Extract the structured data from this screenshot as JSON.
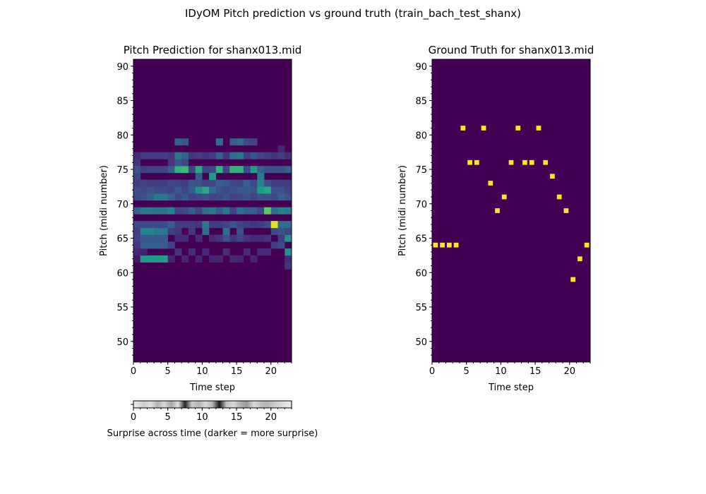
{
  "figure": {
    "suptitle": "IDyOM Pitch prediction vs ground truth (train_bach_test_shanx)"
  },
  "colors": {
    "viridis_low": "#440154",
    "viridis_high": "#fde725",
    "background": "#ffffff"
  },
  "chart_data": [
    {
      "type": "heatmap",
      "title": "Pitch Prediction for shanx013.mid",
      "xlabel": "Time step",
      "ylabel": "Pitch (midi number)",
      "xlim": [
        0,
        23
      ],
      "ylim": [
        47,
        91
      ],
      "x_ticks": [
        0,
        5,
        10,
        15,
        20
      ],
      "y_ticks": [
        50,
        55,
        60,
        65,
        70,
        75,
        80,
        85,
        90
      ],
      "colormap": "viridis",
      "cells": [
        [
          0,
          62,
          0.06
        ],
        [
          0,
          63,
          0.1
        ],
        [
          0,
          64,
          0.15
        ],
        [
          0,
          65,
          0.2
        ],
        [
          0,
          66,
          0.18
        ],
        [
          0,
          67,
          0.22
        ],
        [
          0,
          69,
          0.3
        ],
        [
          0,
          71,
          0.22
        ],
        [
          0,
          72,
          0.24
        ],
        [
          0,
          73,
          0.18
        ],
        [
          0,
          74,
          0.2
        ],
        [
          0,
          75,
          0.25
        ],
        [
          0,
          76,
          0.15
        ],
        [
          0,
          77,
          0.12
        ],
        [
          1,
          62,
          0.55
        ],
        [
          1,
          63,
          0.08
        ],
        [
          1,
          64,
          0.3
        ],
        [
          1,
          65,
          0.28
        ],
        [
          1,
          66,
          0.45
        ],
        [
          1,
          67,
          0.22
        ],
        [
          1,
          69,
          0.4
        ],
        [
          1,
          71,
          0.25
        ],
        [
          1,
          72,
          0.22
        ],
        [
          1,
          73,
          0.2
        ],
        [
          1,
          75,
          0.18
        ],
        [
          1,
          77,
          0.18
        ],
        [
          2,
          62,
          0.55
        ],
        [
          2,
          64,
          0.3
        ],
        [
          2,
          65,
          0.28
        ],
        [
          2,
          66,
          0.45
        ],
        [
          2,
          67,
          0.22
        ],
        [
          2,
          69,
          0.4
        ],
        [
          2,
          71,
          0.3
        ],
        [
          2,
          72,
          0.25
        ],
        [
          2,
          73,
          0.18
        ],
        [
          2,
          75,
          0.2
        ],
        [
          2,
          77,
          0.18
        ],
        [
          3,
          62,
          0.55
        ],
        [
          3,
          64,
          0.3
        ],
        [
          3,
          65,
          0.28
        ],
        [
          3,
          66,
          0.4
        ],
        [
          3,
          67,
          0.22
        ],
        [
          3,
          69,
          0.38
        ],
        [
          3,
          71,
          0.4
        ],
        [
          3,
          72,
          0.22
        ],
        [
          3,
          73,
          0.18
        ],
        [
          3,
          75,
          0.2
        ],
        [
          3,
          77,
          0.18
        ],
        [
          4,
          62,
          0.55
        ],
        [
          4,
          64,
          0.3
        ],
        [
          4,
          65,
          0.28
        ],
        [
          4,
          66,
          0.4
        ],
        [
          4,
          67,
          0.22
        ],
        [
          4,
          69,
          0.38
        ],
        [
          4,
          71,
          0.4
        ],
        [
          4,
          72,
          0.22
        ],
        [
          4,
          73,
          0.18
        ],
        [
          4,
          75,
          0.2
        ],
        [
          4,
          77,
          0.18
        ],
        [
          5,
          62,
          0.1
        ],
        [
          5,
          64,
          0.2
        ],
        [
          5,
          66,
          0.18
        ],
        [
          5,
          67,
          0.3
        ],
        [
          5,
          69,
          0.45
        ],
        [
          5,
          71,
          0.32
        ],
        [
          5,
          72,
          0.2
        ],
        [
          5,
          73,
          0.22
        ],
        [
          5,
          75,
          0.3
        ],
        [
          5,
          76,
          0.15
        ],
        [
          5,
          77,
          0.15
        ],
        [
          6,
          63,
          0.15
        ],
        [
          6,
          65,
          0.12
        ],
        [
          6,
          66,
          0.15
        ],
        [
          6,
          67,
          0.18
        ],
        [
          6,
          69,
          0.2
        ],
        [
          6,
          71,
          0.22
        ],
        [
          6,
          72,
          0.28
        ],
        [
          6,
          73,
          0.2
        ],
        [
          6,
          75,
          0.65
        ],
        [
          6,
          76,
          0.25
        ],
        [
          6,
          77,
          0.4
        ],
        [
          6,
          79,
          0.3
        ],
        [
          7,
          62,
          0.1
        ],
        [
          7,
          65,
          0.12
        ],
        [
          7,
          67,
          0.18
        ],
        [
          7,
          69,
          0.22
        ],
        [
          7,
          71,
          0.28
        ],
        [
          7,
          72,
          0.22
        ],
        [
          7,
          73,
          0.18
        ],
        [
          7,
          75,
          0.68
        ],
        [
          7,
          76,
          0.2
        ],
        [
          7,
          77,
          0.3
        ],
        [
          7,
          79,
          0.25
        ],
        [
          8,
          63,
          0.12
        ],
        [
          8,
          66,
          0.15
        ],
        [
          8,
          67,
          0.18
        ],
        [
          8,
          69,
          0.3
        ],
        [
          8,
          71,
          0.2
        ],
        [
          8,
          72,
          0.3
        ],
        [
          8,
          73,
          0.28
        ],
        [
          8,
          75,
          0.2
        ],
        [
          8,
          77,
          0.15
        ],
        [
          9,
          62,
          0.1
        ],
        [
          9,
          65,
          0.12
        ],
        [
          9,
          67,
          0.15
        ],
        [
          9,
          69,
          0.2
        ],
        [
          9,
          71,
          0.22
        ],
        [
          9,
          72,
          0.5
        ],
        [
          9,
          73,
          0.25
        ],
        [
          9,
          74,
          0.28
        ],
        [
          9,
          75,
          0.6
        ],
        [
          9,
          77,
          0.18
        ],
        [
          10,
          63,
          0.12
        ],
        [
          10,
          66,
          0.35
        ],
        [
          10,
          67,
          0.4
        ],
        [
          10,
          69,
          0.35
        ],
        [
          10,
          71,
          0.25
        ],
        [
          10,
          72,
          0.6
        ],
        [
          10,
          73,
          0.2
        ],
        [
          10,
          75,
          0.2
        ],
        [
          10,
          77,
          0.15
        ],
        [
          11,
          62,
          0.1
        ],
        [
          11,
          65,
          0.12
        ],
        [
          11,
          67,
          0.18
        ],
        [
          11,
          69,
          0.4
        ],
        [
          11,
          71,
          0.2
        ],
        [
          11,
          72,
          0.35
        ],
        [
          11,
          73,
          0.22
        ],
        [
          11,
          74,
          0.55
        ],
        [
          11,
          75,
          0.22
        ],
        [
          11,
          77,
          0.18
        ],
        [
          12,
          62,
          0.1
        ],
        [
          12,
          65,
          0.15
        ],
        [
          12,
          67,
          0.18
        ],
        [
          12,
          69,
          0.28
        ],
        [
          12,
          71,
          0.22
        ],
        [
          12,
          72,
          0.25
        ],
        [
          12,
          73,
          0.3
        ],
        [
          12,
          75,
          0.65
        ],
        [
          12,
          77,
          0.3
        ],
        [
          12,
          79,
          0.35
        ],
        [
          13,
          63,
          0.12
        ],
        [
          13,
          65,
          0.25
        ],
        [
          13,
          66,
          0.35
        ],
        [
          13,
          67,
          0.2
        ],
        [
          13,
          69,
          0.4
        ],
        [
          13,
          71,
          0.25
        ],
        [
          13,
          72,
          0.22
        ],
        [
          13,
          73,
          0.28
        ],
        [
          13,
          75,
          0.2
        ],
        [
          13,
          77,
          0.15
        ],
        [
          14,
          62,
          0.12
        ],
        [
          14,
          65,
          0.15
        ],
        [
          14,
          67,
          0.25
        ],
        [
          14,
          69,
          0.2
        ],
        [
          14,
          71,
          0.2
        ],
        [
          14,
          72,
          0.25
        ],
        [
          14,
          73,
          0.22
        ],
        [
          14,
          75,
          0.65
        ],
        [
          14,
          77,
          0.35
        ],
        [
          14,
          79,
          0.3
        ],
        [
          15,
          62,
          0.1
        ],
        [
          15,
          65,
          0.2
        ],
        [
          15,
          66,
          0.25
        ],
        [
          15,
          67,
          0.2
        ],
        [
          15,
          69,
          0.35
        ],
        [
          15,
          71,
          0.22
        ],
        [
          15,
          72,
          0.28
        ],
        [
          15,
          73,
          0.2
        ],
        [
          15,
          75,
          0.65
        ],
        [
          15,
          77,
          0.4
        ],
        [
          15,
          79,
          0.35
        ],
        [
          16,
          63,
          0.12
        ],
        [
          16,
          65,
          0.15
        ],
        [
          16,
          67,
          0.18
        ],
        [
          16,
          69,
          0.3
        ],
        [
          16,
          71,
          0.25
        ],
        [
          16,
          72,
          0.28
        ],
        [
          16,
          73,
          0.3
        ],
        [
          16,
          75,
          0.22
        ],
        [
          16,
          77,
          0.18
        ],
        [
          16,
          79,
          0.22
        ],
        [
          17,
          62,
          0.1
        ],
        [
          17,
          65,
          0.12
        ],
        [
          17,
          67,
          0.15
        ],
        [
          17,
          69,
          0.3
        ],
        [
          17,
          71,
          0.2
        ],
        [
          17,
          72,
          0.25
        ],
        [
          17,
          73,
          0.22
        ],
        [
          17,
          75,
          0.55
        ],
        [
          17,
          77,
          0.25
        ],
        [
          17,
          79,
          0.2
        ],
        [
          18,
          63,
          0.12
        ],
        [
          18,
          65,
          0.12
        ],
        [
          18,
          67,
          0.18
        ],
        [
          18,
          69,
          0.22
        ],
        [
          18,
          71,
          0.25
        ],
        [
          18,
          72,
          0.55
        ],
        [
          18,
          73,
          0.45
        ],
        [
          18,
          74,
          0.4
        ],
        [
          18,
          75,
          0.3
        ],
        [
          18,
          77,
          0.2
        ],
        [
          19,
          63,
          0.12
        ],
        [
          19,
          65,
          0.15
        ],
        [
          19,
          67,
          0.22
        ],
        [
          19,
          69,
          0.75
        ],
        [
          19,
          71,
          0.25
        ],
        [
          19,
          72,
          0.6
        ],
        [
          19,
          73,
          0.25
        ],
        [
          19,
          75,
          0.25
        ],
        [
          19,
          77,
          0.18
        ],
        [
          20,
          64,
          0.18
        ],
        [
          20,
          66,
          0.22
        ],
        [
          20,
          67,
          0.95
        ],
        [
          20,
          69,
          0.35
        ],
        [
          20,
          71,
          0.22
        ],
        [
          20,
          72,
          0.25
        ],
        [
          20,
          73,
          0.18
        ],
        [
          20,
          75,
          0.25
        ],
        [
          20,
          77,
          0.15
        ],
        [
          21,
          64,
          0.22
        ],
        [
          21,
          65,
          0.18
        ],
        [
          21,
          66,
          0.25
        ],
        [
          21,
          67,
          0.35
        ],
        [
          21,
          69,
          0.45
        ],
        [
          21,
          71,
          0.3
        ],
        [
          21,
          72,
          0.25
        ],
        [
          21,
          73,
          0.18
        ],
        [
          21,
          75,
          0.25
        ],
        [
          21,
          77,
          0.18
        ],
        [
          21,
          78,
          0.1
        ],
        [
          22,
          61,
          0.15
        ],
        [
          22,
          62,
          0.12
        ],
        [
          22,
          63,
          0.5
        ],
        [
          22,
          65,
          0.5
        ],
        [
          22,
          66,
          0.2
        ],
        [
          22,
          67,
          0.35
        ],
        [
          22,
          69,
          0.4
        ],
        [
          22,
          71,
          0.25
        ],
        [
          22,
          72,
          0.2
        ],
        [
          22,
          73,
          0.18
        ],
        [
          22,
          75,
          0.3
        ],
        [
          22,
          77,
          0.12
        ]
      ]
    },
    {
      "type": "heatmap",
      "title": "Ground Truth for shanx013.mid",
      "xlabel": "Time step",
      "ylabel": "Pitch (midi number)",
      "xlim": [
        0,
        23
      ],
      "ylim": [
        47,
        91
      ],
      "x_ticks": [
        0,
        5,
        10,
        15,
        20
      ],
      "y_ticks": [
        50,
        55,
        60,
        65,
        70,
        75,
        80,
        85,
        90
      ],
      "colormap": "viridis",
      "notes": [
        [
          0,
          64
        ],
        [
          1,
          64
        ],
        [
          2,
          64
        ],
        [
          3,
          64
        ],
        [
          4,
          81
        ],
        [
          5,
          76
        ],
        [
          6,
          76
        ],
        [
          7,
          81
        ],
        [
          8,
          73
        ],
        [
          9,
          69
        ],
        [
          10,
          71
        ],
        [
          11,
          76
        ],
        [
          12,
          81
        ],
        [
          13,
          76
        ],
        [
          14,
          76
        ],
        [
          15,
          81
        ],
        [
          16,
          76
        ],
        [
          17,
          74
        ],
        [
          18,
          71
        ],
        [
          19,
          69
        ],
        [
          20,
          59
        ],
        [
          21,
          62
        ],
        [
          22,
          64
        ]
      ]
    },
    {
      "type": "heatmap",
      "title": "",
      "xlabel": "Surprise across time (darker = more surprise)",
      "xlim": [
        0,
        23
      ],
      "x_ticks": [
        0,
        5,
        10,
        15,
        20
      ],
      "colormap": "gray_r",
      "values": [
        0.1,
        0.2,
        0.12,
        0.3,
        0.15,
        0.35,
        0.12,
        0.85,
        0.2,
        0.3,
        0.15,
        0.3,
        0.9,
        0.25,
        0.15,
        0.3,
        0.4,
        0.15,
        0.25,
        0.3,
        0.2,
        0.15,
        0.1
      ]
    }
  ]
}
